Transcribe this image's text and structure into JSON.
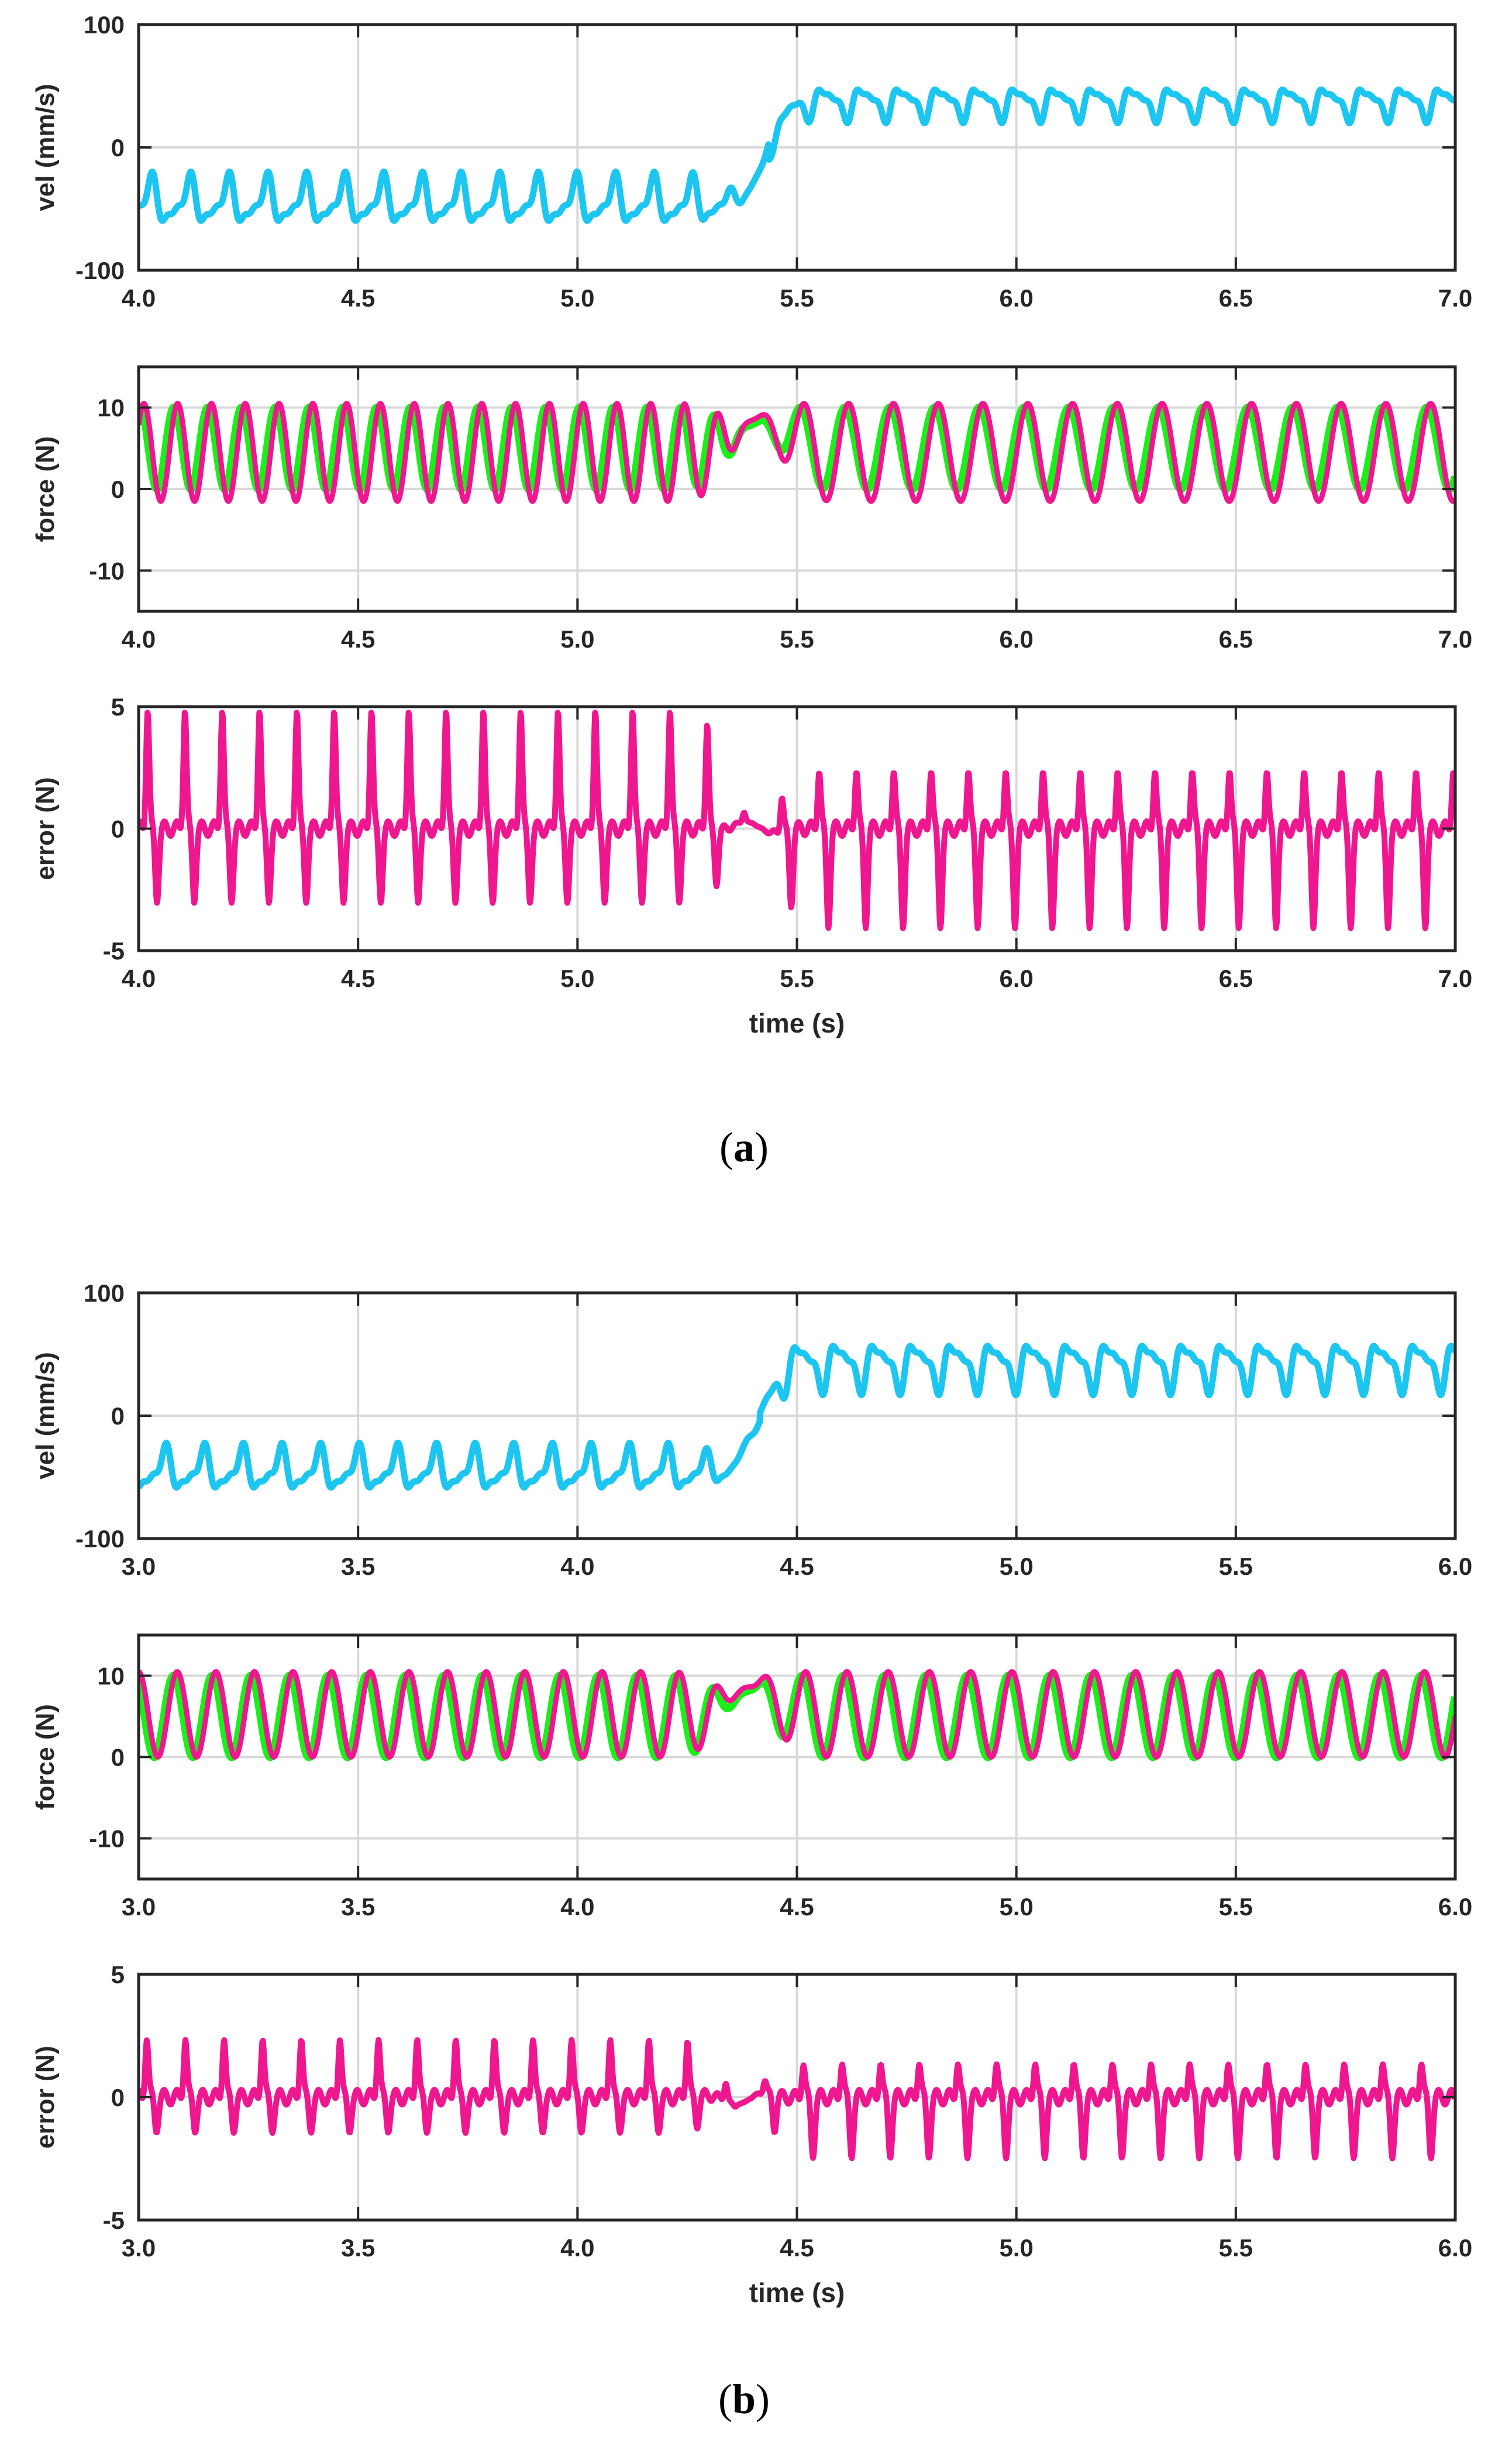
{
  "figure": {
    "colors": {
      "velocity": "#1CC6F0",
      "force_reference": "#19F019",
      "force_measured": "#EF178F",
      "error": "#EF178F",
      "grid": "#D9D9D9"
    },
    "panels": [
      {
        "caption_letter": "a",
        "xlabel": "time (s)",
        "xticks": [
          "4.0",
          "4.5",
          "5.0",
          "5.5",
          "6.0",
          "6.5",
          "7.0"
        ],
        "xlim": [
          4.0,
          7.0
        ],
        "transition_time": 5.4
      },
      {
        "caption_letter": "b",
        "xlabel": "time (s)",
        "xticks": [
          "3.0",
          "3.5",
          "4.0",
          "4.5",
          "5.0",
          "5.5",
          "6.0"
        ],
        "xlim": [
          3.0,
          6.0
        ],
        "transition_time": 4.38
      }
    ]
  },
  "chart_data": [
    {
      "type": "line",
      "panel": "a",
      "ylabel": "vel (mm/s)",
      "ylim": [
        -100,
        100
      ],
      "yticks": [
        "100",
        "0",
        "-100"
      ],
      "grid": true,
      "series": [
        {
          "kind": "velocity",
          "osc_period": 0.088,
          "before": {
            "mean": -45,
            "amp": 22
          },
          "after": {
            "mean": 37,
            "amp": 15
          },
          "range_before": [
            -80,
            -20
          ],
          "range_after": [
            25,
            75
          ]
        }
      ]
    },
    {
      "type": "line",
      "panel": "a",
      "ylabel": "force (N)",
      "ylim": [
        -15,
        15
      ],
      "yticks": [
        "10",
        "0",
        "-10"
      ],
      "grid": true,
      "series": [
        {
          "kind": "force_reference",
          "min": 0,
          "max": 10,
          "period_before": 0.077,
          "period_after": 0.102
        },
        {
          "kind": "force_measured",
          "min": -1.5,
          "max": 10.5,
          "period_before": 0.077,
          "period_after": 0.102
        }
      ]
    },
    {
      "type": "line",
      "panel": "a",
      "ylabel": "error (N)",
      "ylim": [
        -5,
        5
      ],
      "yticks": [
        "5",
        "0",
        "-5"
      ],
      "grid": true,
      "series": [
        {
          "kind": "error",
          "range_before": [
            -3.5,
            5
          ],
          "range_after": [
            -4.8,
            2.5
          ]
        }
      ]
    },
    {
      "type": "line",
      "panel": "b",
      "ylabel": "vel (mm/s)",
      "ylim": [
        -100,
        100
      ],
      "yticks": [
        "100",
        "0",
        "-100"
      ],
      "grid": true,
      "series": [
        {
          "kind": "velocity",
          "osc_period": 0.088,
          "before": {
            "mean": -45,
            "amp": 20
          },
          "after": {
            "mean": 42,
            "amp": 22
          },
          "range_before": [
            -85,
            -30
          ],
          "range_after": [
            25,
            88
          ]
        }
      ]
    },
    {
      "type": "line",
      "panel": "b",
      "ylabel": "force (N)",
      "ylim": [
        -15,
        15
      ],
      "yticks": [
        "10",
        "0",
        "-10"
      ],
      "grid": true,
      "series": [
        {
          "kind": "force_reference",
          "min": 0,
          "max": 10,
          "period_before": 0.088,
          "period_after": 0.094
        },
        {
          "kind": "force_measured",
          "min": 0,
          "max": 10.5,
          "period_before": 0.088,
          "period_after": 0.094
        }
      ]
    },
    {
      "type": "line",
      "panel": "b",
      "ylabel": "error (N)",
      "ylim": [
        -5,
        5
      ],
      "yticks": [
        "5",
        "0",
        "-5"
      ],
      "grid": true,
      "series": [
        {
          "kind": "error",
          "range_before": [
            -1.5,
            2.5
          ],
          "range_after": [
            -2.8,
            1.5
          ]
        }
      ]
    }
  ]
}
